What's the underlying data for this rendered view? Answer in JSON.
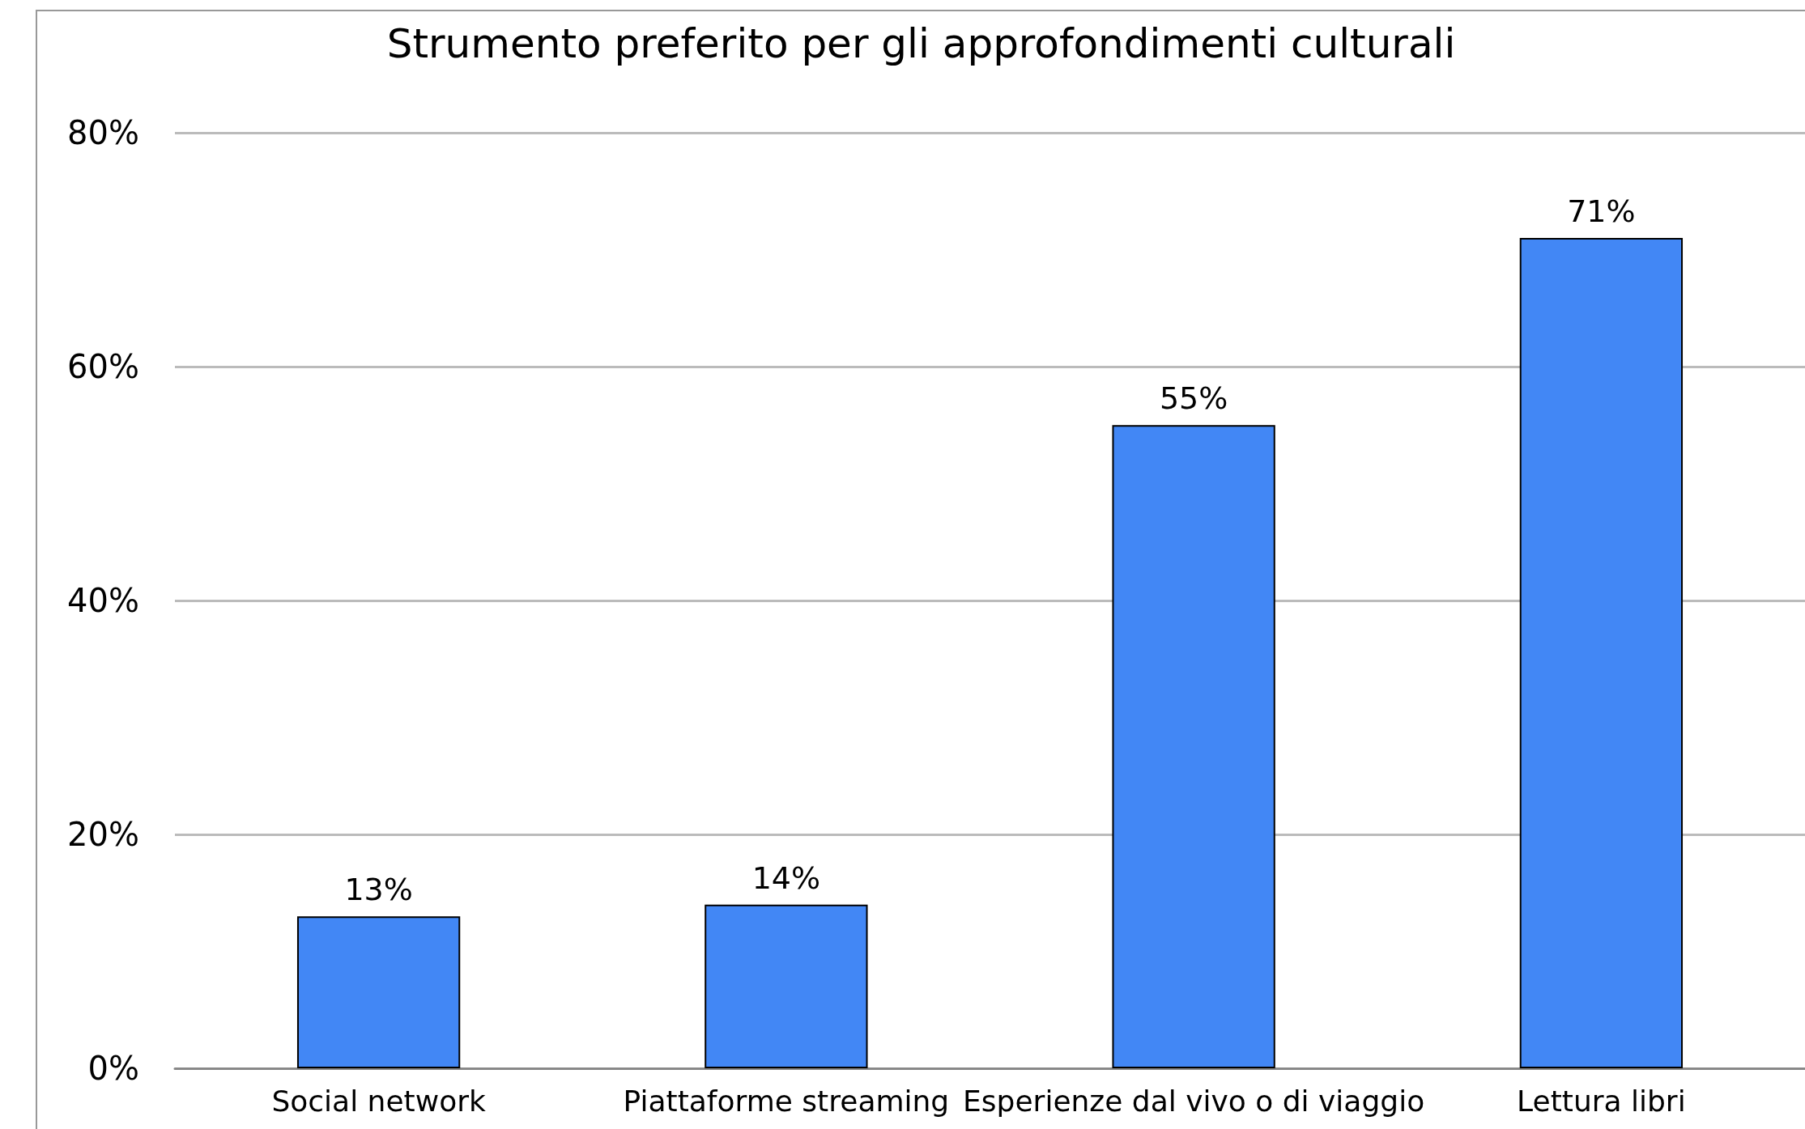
{
  "chart_data": {
    "type": "bar",
    "title": "Strumento preferito per gli approfondimenti culturali",
    "categories": [
      "Social network",
      "Piattaforme streaming",
      "Esperienze dal vivo o di viaggio",
      "Lettura libri"
    ],
    "values": [
      13,
      14,
      55,
      71
    ],
    "color": "#4287f5",
    "value_labels": [
      "13%",
      "14%",
      "55%",
      "71%"
    ],
    "ylim": [
      0,
      80
    ],
    "yticks": [
      {
        "value": 0,
        "label": "0%"
      },
      {
        "value": 20,
        "label": "20%"
      },
      {
        "value": 40,
        "label": "40%"
      },
      {
        "value": 60,
        "label": "60%"
      },
      {
        "value": 80,
        "label": "80%"
      }
    ],
    "grid": true
  }
}
